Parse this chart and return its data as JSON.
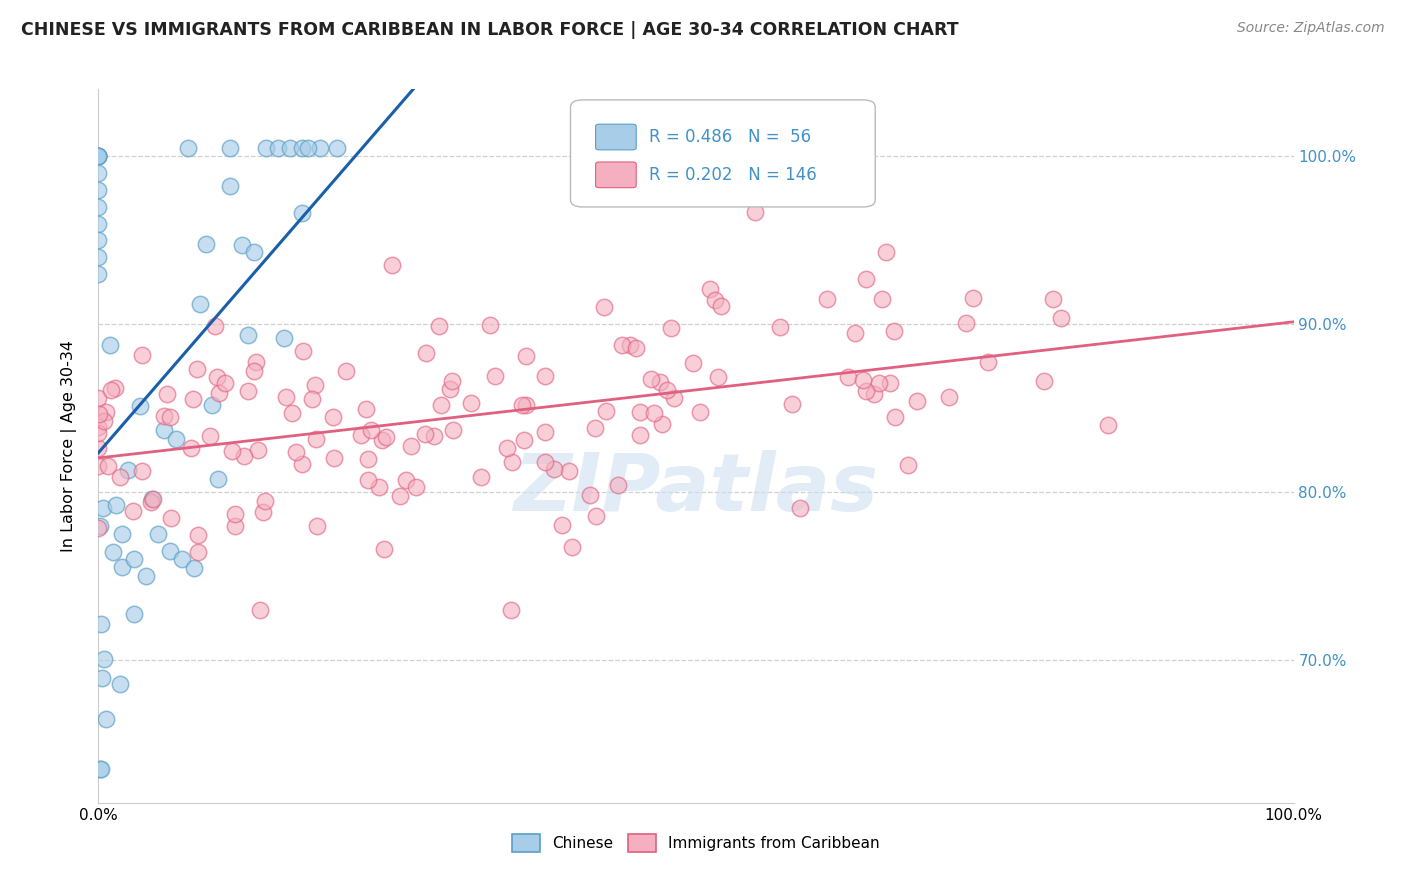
{
  "title": "CHINESE VS IMMIGRANTS FROM CARIBBEAN IN LABOR FORCE | AGE 30-34 CORRELATION CHART",
  "source": "Source: ZipAtlas.com",
  "ylabel": "In Labor Force | Age 30-34",
  "watermark": "ZIPatlas",
  "chinese_R": 0.486,
  "chinese_N": 56,
  "caribbean_R": 0.202,
  "caribbean_N": 146,
  "xlim": [
    0.0,
    1.0
  ],
  "ylim": [
    0.615,
    1.04
  ],
  "ytick_positions": [
    0.7,
    0.8,
    0.9,
    1.0
  ],
  "right_yticklabels": [
    "70.0%",
    "80.0%",
    "90.0%",
    "100.0%"
  ],
  "chinese_color": "#a8cde8",
  "chinese_edge": "#5a9fc5",
  "caribbean_color": "#f4b0c0",
  "caribbean_edge": "#e06080",
  "blue_line": "#1a5fa8",
  "pink_line": "#e06080",
  "legend_val_color": "#4292c6",
  "grid_color": "#d0d0d0",
  "bg_color": "#ffffff",
  "title_color": "#222222",
  "source_color": "#888888",
  "watermark_color": "#cde0f0"
}
